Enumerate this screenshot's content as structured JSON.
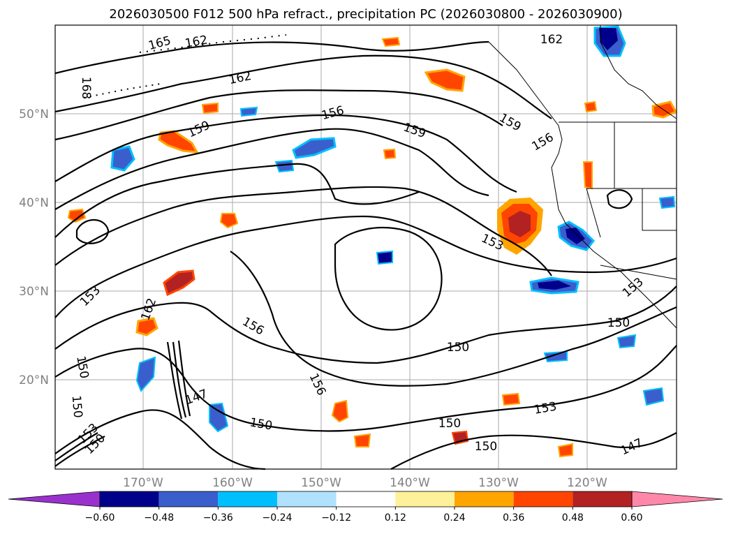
{
  "title": "2026030500 F012 500 hPa refract., precipitation PC (2026030800 - 2026030900)",
  "lat_ticks": [
    "50°N",
    "40°N",
    "30°N",
    "20°N"
  ],
  "lon_ticks": [
    "170°W",
    "160°W",
    "150°W",
    "140°W",
    "130°W",
    "120°W"
  ],
  "colorbar": {
    "levels": [
      "−0.60",
      "−0.48",
      "−0.36",
      "−0.24",
      "−0.12",
      "0.12",
      "0.24",
      "0.36",
      "0.48",
      "0.60"
    ],
    "colors": [
      "#9932cc",
      "#00008b",
      "#3a5fcd",
      "#00bfff",
      "#b0e2ff",
      "#ffffff",
      "#fff09a",
      "#ffa500",
      "#ff4500",
      "#b22222",
      "#ff88aa"
    ]
  },
  "contour_labels": [
    "165",
    "162",
    "162",
    "162",
    "168",
    "159",
    "156",
    "159",
    "159",
    "156",
    "153",
    "153",
    "150",
    "150",
    "153",
    "162",
    "156",
    "150",
    "150",
    "147",
    "153",
    "150",
    "156",
    "150",
    "150",
    "153",
    "147",
    "153",
    "150"
  ],
  "colors": {
    "contour": "#000000",
    "coast": "#000000",
    "grid": "#aaaaaa"
  }
}
